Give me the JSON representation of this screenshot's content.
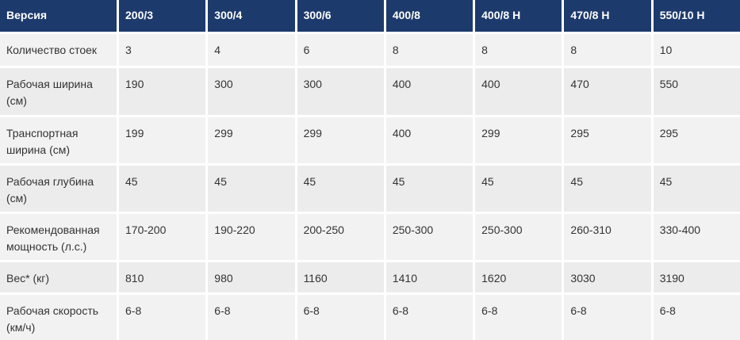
{
  "table": {
    "header": [
      "Версия",
      "200/3",
      "300/4",
      "300/6",
      "400/8",
      "400/8 H",
      "470/8 H",
      "550/10 H"
    ],
    "rows": [
      [
        "Количество стоек",
        "3",
        "4",
        "6",
        "8",
        "8",
        "8",
        "10"
      ],
      [
        "Рабочая ширина (см)",
        "190",
        "300",
        "300",
        "400",
        "400",
        "470",
        "550"
      ],
      [
        "Транспортная ширина (см)",
        "199",
        "299",
        "299",
        "400",
        "299",
        "295",
        "295"
      ],
      [
        "Рабочая глубина (см)",
        "45",
        "45",
        "45",
        "45",
        "45",
        "45",
        "45"
      ],
      [
        "Рекомендованная мощность (л.с.)",
        "170-200",
        "190-220",
        "200-250",
        "250-300",
        "250-300",
        "260-310",
        "330-400"
      ],
      [
        "Вес* (кг)",
        "810",
        "980",
        "1160",
        "1410",
        "1620",
        "3030",
        "3190"
      ],
      [
        "Рабочая скорость (км/ч)",
        "6-8",
        "6-8",
        "6-8",
        "6-8",
        "6-8",
        "6-8",
        "6-8"
      ]
    ]
  }
}
